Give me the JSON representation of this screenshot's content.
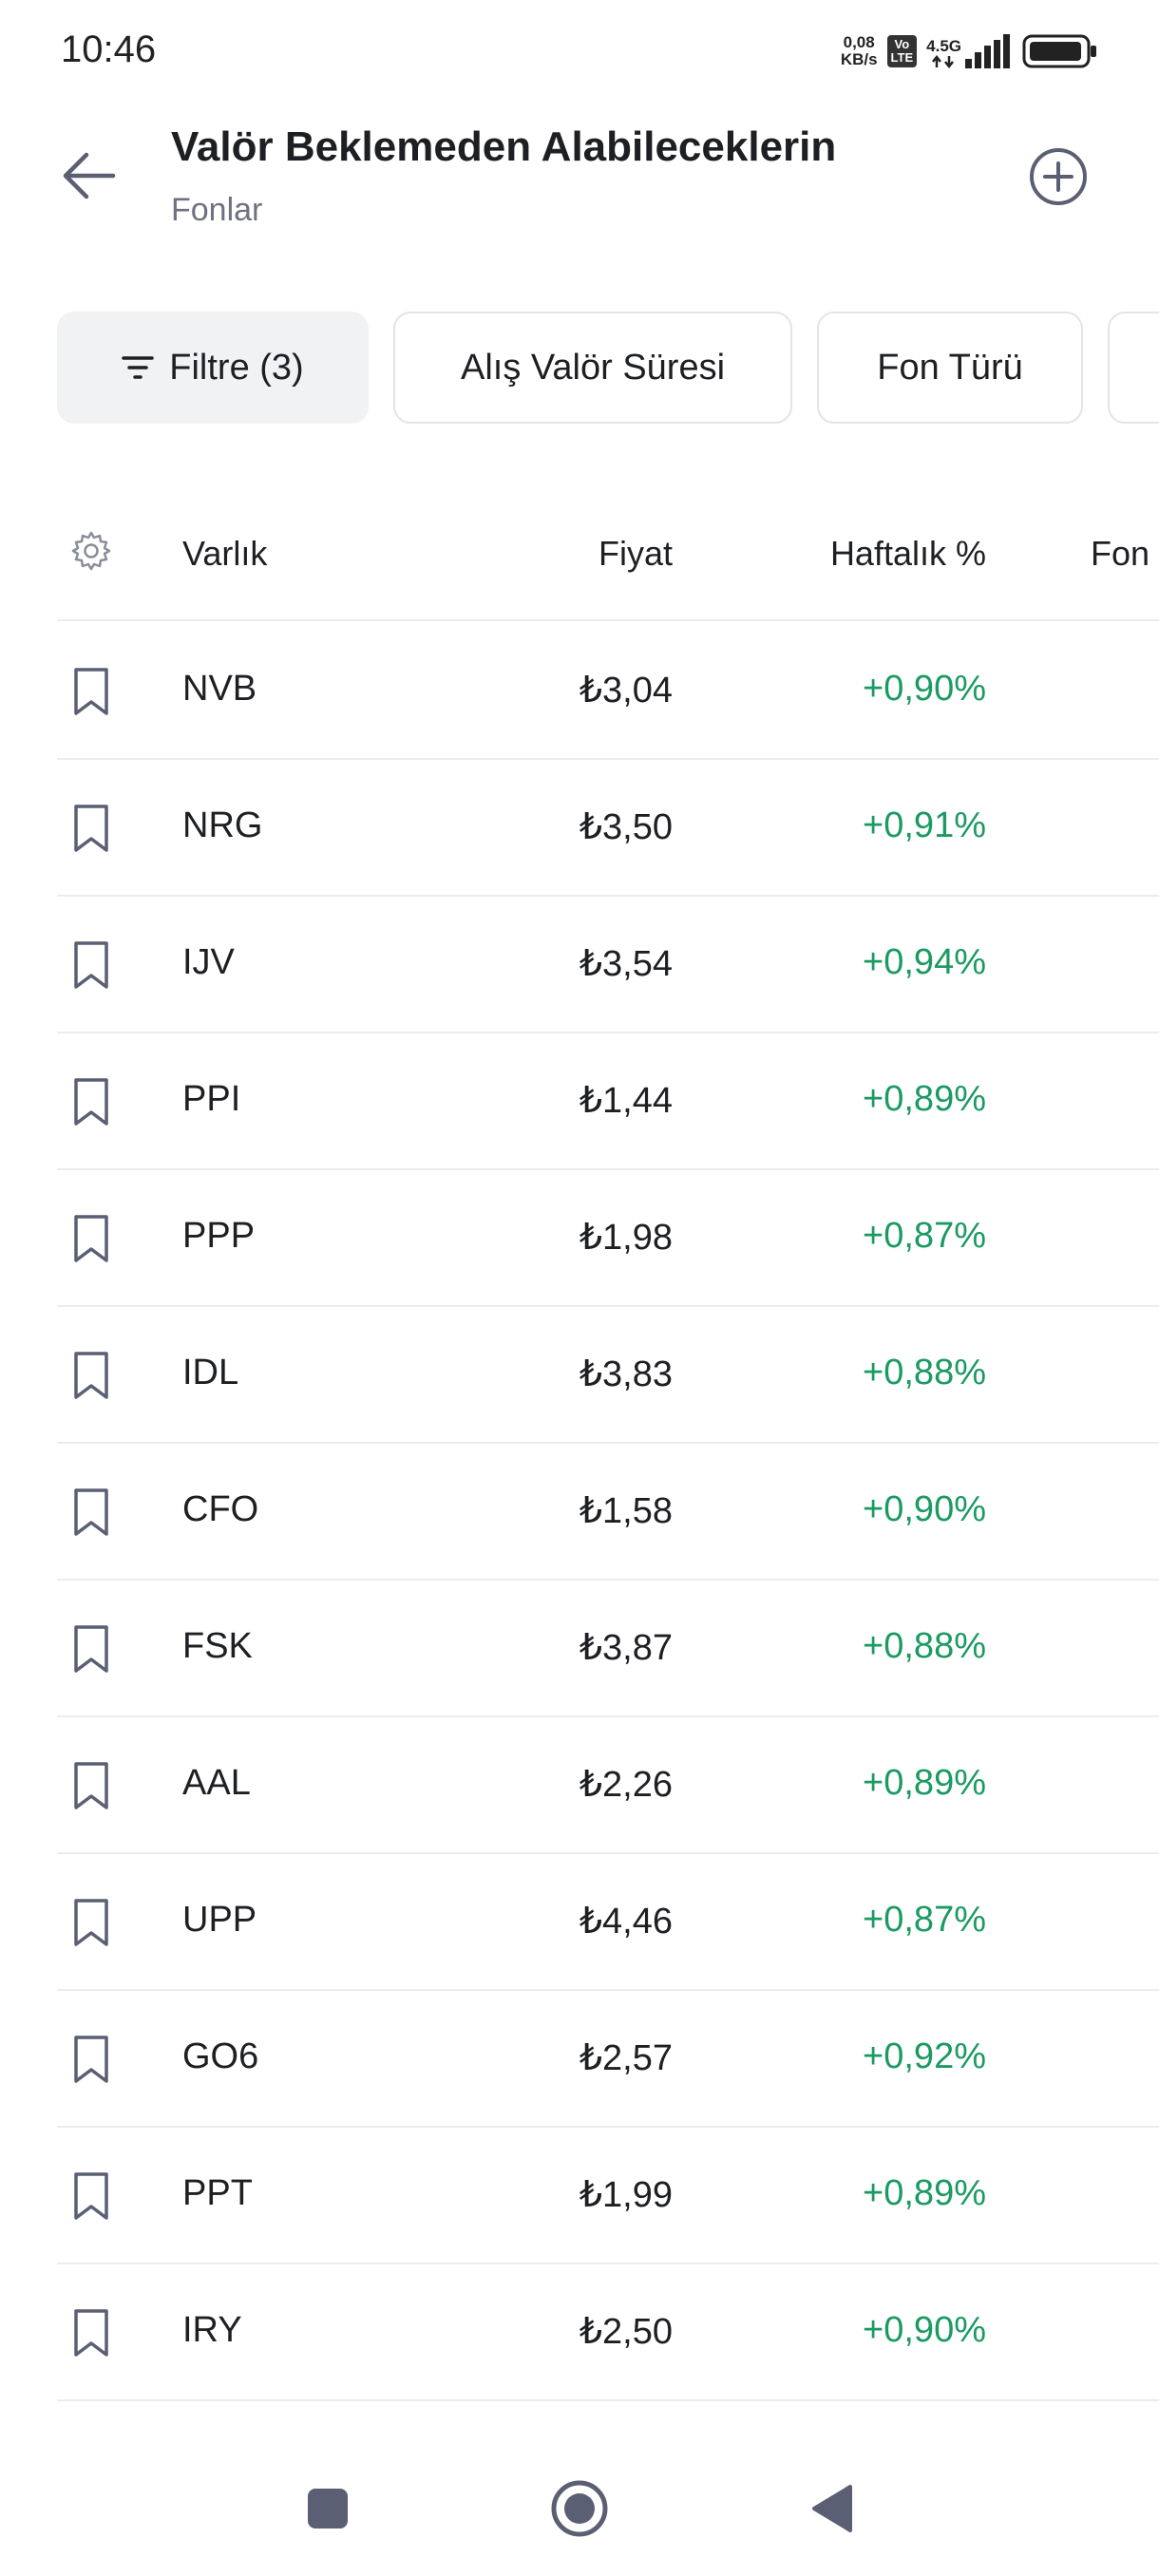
{
  "status_bar": {
    "time": "10:46",
    "net_speed_value": "0,08",
    "net_speed_unit": "KB/s",
    "volte_top": "Vo",
    "volte_bottom": "LTE",
    "network": "4.5G"
  },
  "header": {
    "title": "Valör Beklemeden Alabileceklerin",
    "subtitle": "Fonlar"
  },
  "filters": [
    {
      "label": "Filtre (3)"
    },
    {
      "label": "Alış Valör Süresi"
    },
    {
      "label": "Fon Türü"
    }
  ],
  "table": {
    "columns": {
      "asset": "Varlık",
      "price": "Fiyat",
      "weekly": "Haftalık %",
      "fund": "Fon"
    },
    "rows": [
      {
        "asset": "NVB",
        "price": "₺3,04",
        "weekly": "+0,90%"
      },
      {
        "asset": "NRG",
        "price": "₺3,50",
        "weekly": "+0,91%"
      },
      {
        "asset": "IJV",
        "price": "₺3,54",
        "weekly": "+0,94%"
      },
      {
        "asset": "PPI",
        "price": "₺1,44",
        "weekly": "+0,89%"
      },
      {
        "asset": "PPP",
        "price": "₺1,98",
        "weekly": "+0,87%"
      },
      {
        "asset": "IDL",
        "price": "₺3,83",
        "weekly": "+0,88%"
      },
      {
        "asset": "CFO",
        "price": "₺1,58",
        "weekly": "+0,90%"
      },
      {
        "asset": "FSK",
        "price": "₺3,87",
        "weekly": "+0,88%"
      },
      {
        "asset": "AAL",
        "price": "₺2,26",
        "weekly": "+0,89%"
      },
      {
        "asset": "UPP",
        "price": "₺4,46",
        "weekly": "+0,87%"
      },
      {
        "asset": "GO6",
        "price": "₺2,57",
        "weekly": "+0,92%"
      },
      {
        "asset": "PPT",
        "price": "₺1,99",
        "weekly": "+0,89%"
      },
      {
        "asset": "IRY",
        "price": "₺2,50",
        "weekly": "+0,90%"
      }
    ]
  },
  "colors": {
    "positive": "#1b9a62",
    "text": "#1d1f23",
    "muted": "#6e7280",
    "icon": "#5a5f73",
    "divider": "#ececef"
  },
  "icons": {
    "back": "arrow-left-icon",
    "add": "plus-circle-icon",
    "filter": "filter-lines-icon",
    "settings": "gear-icon",
    "bookmark": "bookmark-icon",
    "nav_recent": "square-icon",
    "nav_home": "circle-icon",
    "nav_back": "triangle-left-icon"
  }
}
